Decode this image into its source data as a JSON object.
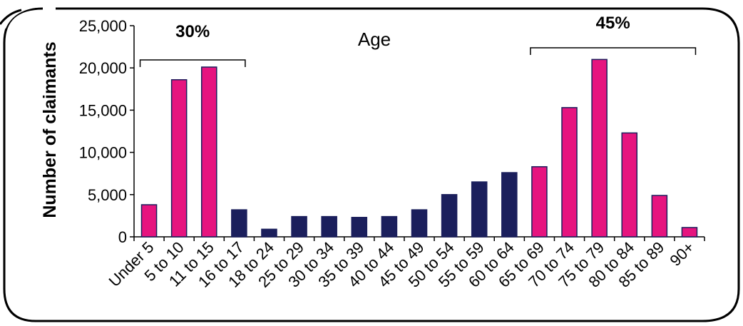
{
  "chart_data": {
    "type": "bar",
    "xlabel": "Age",
    "ylabel": "Number of claimants",
    "ylim": [
      0,
      25000
    ],
    "yticks": [
      0,
      5000,
      10000,
      15000,
      20000,
      25000
    ],
    "ytick_labels": [
      "0",
      "5,000",
      "10,000",
      "15,000",
      "20,000",
      "25,000"
    ],
    "categories": [
      "Under 5",
      "5 to 10",
      "11 to 15",
      "16 to 17",
      "18 to 24",
      "25 to 29",
      "30 to 34",
      "35 to 39",
      "40 to 44",
      "45 to 49",
      "50 to 54",
      "55 to 59",
      "60 to 64",
      "65 to 69",
      "70 to 74",
      "75 to 79",
      "80 to 84",
      "85 to 89",
      "90+"
    ],
    "values": [
      3800,
      18600,
      20100,
      3200,
      900,
      2400,
      2400,
      2300,
      2400,
      3200,
      5000,
      6500,
      7600,
      8300,
      15300,
      21000,
      12300,
      4900,
      1100
    ],
    "bar_colors": [
      "#e6147f",
      "#e6147f",
      "#e6147f",
      "#1b1f5c",
      "#1b1f5c",
      "#1b1f5c",
      "#1b1f5c",
      "#1b1f5c",
      "#1b1f5c",
      "#1b1f5c",
      "#1b1f5c",
      "#1b1f5c",
      "#1b1f5c",
      "#e6147f",
      "#e6147f",
      "#e6147f",
      "#e6147f",
      "#e6147f",
      "#e6147f"
    ],
    "bar_outline": "#1b1f5c",
    "annotations": [
      {
        "text": "30%",
        "from_index": 0,
        "to_index": 3
      },
      {
        "text": "45%",
        "from_index": 13,
        "to_index": 18
      }
    ],
    "grid": false,
    "legend": "none"
  }
}
